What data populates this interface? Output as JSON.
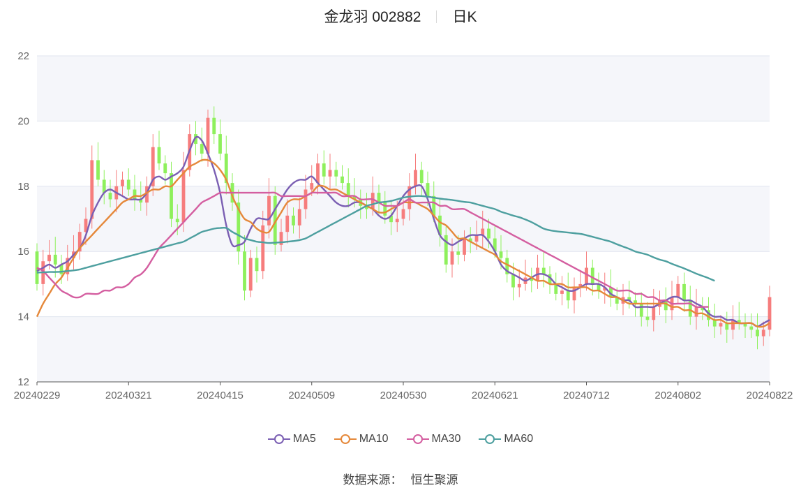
{
  "header": {
    "stock_name": "金龙羽 002882",
    "period": "日K"
  },
  "footer": {
    "source_label": "数据来源：",
    "source_value": "恒生聚源"
  },
  "chart_data": {
    "type": "candlestick",
    "title": "金龙羽 002882",
    "subtitle": "日K",
    "ylim": [
      12,
      22
    ],
    "y_ticks": [
      12,
      14,
      16,
      18,
      20,
      22
    ],
    "x_tick_labels": [
      "20240229",
      "20240321",
      "20240415",
      "20240509",
      "20240530",
      "20240621",
      "20240712",
      "20240802",
      "20240822"
    ],
    "x_tick_indices": [
      0,
      15,
      30,
      45,
      60,
      75,
      90,
      105,
      120
    ],
    "n_days": 121,
    "grid": "horizontal",
    "band_colors": [
      "#f5f6fa",
      "#ffffff"
    ],
    "up_color": "#f67d7d",
    "down_color": "#8ef05c",
    "close": [
      15.0,
      15.7,
      15.9,
      15.6,
      15.3,
      15.8,
      16.0,
      16.6,
      17.0,
      18.8,
      18.2,
      17.8,
      17.6,
      18.0,
      18.2,
      17.9,
      17.6,
      17.5,
      18.0,
      19.2,
      18.7,
      18.4,
      17.0,
      16.9,
      18.5,
      19.6,
      19.3,
      19.0,
      20.1,
      19.6,
      19.0,
      18.1,
      17.5,
      16.0,
      14.8,
      15.8,
      15.4,
      16.8,
      17.7,
      16.2,
      16.6,
      17.1,
      16.8,
      17.3,
      17.9,
      18.1,
      18.7,
      18.3,
      18.5,
      18.3,
      18.1,
      17.7,
      17.6,
      17.4,
      17.3,
      17.8,
      17.5,
      17.1,
      16.9,
      17.0,
      17.3,
      18.0,
      18.5,
      18.1,
      17.7,
      17.1,
      16.5,
      15.6,
      16.0,
      15.9,
      16.4,
      16.3,
      16.5,
      16.7,
      16.4,
      16.0,
      15.8,
      15.3,
      14.9,
      15.0,
      15.2,
      15.1,
      15.5,
      15.3,
      15.0,
      14.7,
      14.8,
      14.5,
      14.9,
      15.0,
      15.5,
      15.0,
      14.8,
      14.9,
      14.6,
      14.4,
      14.6,
      14.5,
      14.4,
      14.0,
      13.9,
      14.3,
      14.5,
      14.2,
      14.6,
      15.0,
      14.5,
      14.0,
      14.3,
      14.2,
      13.9,
      13.7,
      13.8,
      13.6,
      13.9,
      13.8,
      13.7,
      13.6,
      13.4,
      13.6,
      14.6
    ],
    "series": [
      {
        "name": "MA5",
        "color": "#7b5fb3",
        "values": [
          15.4,
          15.5,
          15.6,
          15.5,
          15.6,
          15.7,
          15.9,
          16.1,
          16.5,
          17.1,
          17.5,
          17.8,
          17.9,
          17.8,
          17.7,
          17.6,
          17.6,
          17.6,
          17.8,
          18.2,
          18.3,
          18.2,
          18.3,
          18.4,
          18.6,
          19.1,
          19.5,
          19.4,
          19.0,
          18.5,
          17.8,
          16.8,
          16.2,
          16.2,
          16.3,
          16.7,
          17.0,
          17.0,
          17.0,
          17.3,
          17.6,
          17.9,
          18.1,
          18.2,
          18.2,
          18.3,
          18.1,
          17.9,
          17.7,
          17.5,
          17.4,
          17.4,
          17.5,
          17.5,
          17.4,
          17.3,
          17.1,
          17.0,
          17.1,
          17.4,
          17.7,
          17.9,
          18.0,
          18.0,
          17.6,
          17.0,
          16.5,
          16.3,
          16.2,
          16.3,
          16.4,
          16.5,
          16.5,
          16.5,
          16.3,
          16.0,
          15.6,
          15.4,
          15.3,
          15.2,
          15.1,
          15.2,
          15.3,
          15.3,
          15.2,
          15.0,
          14.9,
          14.8,
          14.8,
          14.9,
          15.0,
          15.0,
          15.0,
          14.9,
          14.7,
          14.6,
          14.5,
          14.5,
          14.3,
          14.3,
          14.3,
          14.3,
          14.4,
          14.5,
          14.6,
          14.6,
          14.5,
          14.5,
          14.4,
          14.3,
          14.1,
          14.0,
          14.0,
          13.9,
          13.9,
          13.8,
          13.8,
          13.8,
          13.7,
          13.8,
          13.9
        ]
      },
      {
        "name": "MA10",
        "color": "#e5883a",
        "values": [
          14.0,
          14.4,
          14.7,
          15.0,
          15.2,
          15.5,
          15.8,
          16.1,
          16.3,
          16.5,
          16.7,
          16.9,
          17.1,
          17.3,
          17.5,
          17.6,
          17.7,
          17.7,
          17.8,
          17.9,
          17.9,
          18.0,
          18.0,
          18.2,
          18.4,
          18.6,
          18.7,
          18.8,
          18.8,
          18.7,
          18.5,
          18.2,
          17.7,
          17.3,
          17.0,
          16.9,
          16.7,
          16.6,
          16.6,
          16.9,
          17.2,
          17.5,
          17.6,
          17.6,
          17.7,
          17.8,
          18.0,
          18.0,
          17.9,
          17.9,
          17.8,
          17.7,
          17.6,
          17.5,
          17.4,
          17.3,
          17.2,
          17.2,
          17.3,
          17.4,
          17.5,
          17.5,
          17.5,
          17.4,
          17.3,
          17.1,
          16.9,
          16.8,
          16.6,
          16.4,
          16.4,
          16.3,
          16.2,
          16.1,
          16.0,
          15.9,
          15.7,
          15.6,
          15.5,
          15.4,
          15.3,
          15.2,
          15.1,
          15.1,
          15.0,
          15.0,
          15.0,
          14.9,
          14.9,
          14.9,
          14.9,
          14.8,
          14.8,
          14.7,
          14.6,
          14.6,
          14.5,
          14.4,
          14.4,
          14.4,
          14.4,
          14.4,
          14.4,
          14.4,
          14.3,
          14.3,
          14.2,
          14.2,
          14.1,
          14.1,
          14.0,
          13.9,
          13.9,
          13.8,
          13.8,
          13.8,
          13.8,
          13.8,
          13.7,
          13.7,
          13.8
        ]
      },
      {
        "name": "MA30",
        "color": "#d45ea0",
        "values": [
          15.5,
          15.4,
          15.2,
          15.0,
          14.8,
          14.7,
          14.6,
          14.6,
          14.7,
          14.7,
          14.7,
          14.8,
          14.8,
          14.9,
          14.9,
          15.0,
          15.2,
          15.3,
          15.5,
          15.8,
          16.1,
          16.3,
          16.5,
          16.7,
          16.9,
          17.1,
          17.3,
          17.5,
          17.6,
          17.7,
          17.8,
          17.8,
          17.8,
          17.8,
          17.8,
          17.8,
          17.8,
          17.8,
          17.8,
          17.8,
          17.7,
          17.7,
          17.7,
          17.7,
          17.7,
          17.8,
          17.8,
          17.8,
          17.8,
          17.8,
          17.7,
          17.7,
          17.7,
          17.6,
          17.6,
          17.6,
          17.5,
          17.4,
          17.4,
          17.4,
          17.5,
          17.6,
          17.5,
          17.5,
          17.5,
          17.5,
          17.4,
          17.4,
          17.3,
          17.3,
          17.3,
          17.2,
          17.1,
          17.0,
          16.9,
          16.8,
          16.7,
          16.6,
          16.5,
          16.4,
          16.3,
          16.2,
          16.1,
          16.0,
          15.9,
          15.8,
          15.7,
          15.6,
          15.5,
          15.4,
          15.3,
          15.2,
          15.1,
          15.0,
          14.9,
          14.8,
          14.8,
          14.8,
          14.7,
          14.7,
          14.6,
          14.6,
          14.5,
          14.5,
          14.4,
          14.4,
          14.4,
          14.4,
          14.3,
          14.3,
          14.3
        ]
      },
      {
        "name": "MA60",
        "color": "#4d9f9f",
        "values": [
          15.35,
          15.36,
          15.37,
          15.37,
          15.38,
          15.4,
          15.42,
          15.45,
          15.5,
          15.55,
          15.6,
          15.65,
          15.7,
          15.75,
          15.8,
          15.85,
          15.9,
          15.95,
          16.0,
          16.05,
          16.1,
          16.15,
          16.2,
          16.25,
          16.3,
          16.4,
          16.5,
          16.6,
          16.65,
          16.7,
          16.72,
          16.72,
          16.6,
          16.5,
          16.4,
          16.35,
          16.3,
          16.28,
          16.26,
          16.27,
          16.28,
          16.3,
          16.32,
          16.35,
          16.4,
          16.5,
          16.6,
          16.7,
          16.8,
          16.9,
          17.0,
          17.1,
          17.2,
          17.3,
          17.4,
          17.45,
          17.5,
          17.52,
          17.55,
          17.6,
          17.65,
          17.68,
          17.7,
          17.7,
          17.68,
          17.65,
          17.62,
          17.6,
          17.58,
          17.55,
          17.52,
          17.5,
          17.45,
          17.4,
          17.35,
          17.3,
          17.22,
          17.16,
          17.1,
          17.05,
          16.98,
          16.9,
          16.8,
          16.7,
          16.65,
          16.62,
          16.6,
          16.58,
          16.56,
          16.54,
          16.5,
          16.45,
          16.4,
          16.35,
          16.3,
          16.22,
          16.15,
          16.08,
          16.0,
          15.95,
          15.9,
          15.82,
          15.75,
          15.7,
          15.62,
          15.55,
          15.48,
          15.4,
          15.32,
          15.25,
          15.18,
          15.1
        ]
      }
    ]
  }
}
